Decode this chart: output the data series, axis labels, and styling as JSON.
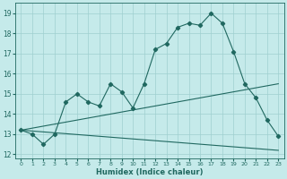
{
  "xlabel": "Humidex (Indice chaleur)",
  "xlim": [
    -0.5,
    23.5
  ],
  "ylim": [
    11.8,
    19.5
  ],
  "yticks": [
    12,
    13,
    14,
    15,
    16,
    17,
    18,
    19
  ],
  "xtick_labels": [
    "0",
    "1",
    "2",
    "3",
    "4",
    "5",
    "6",
    "7",
    "8",
    "9",
    "10",
    "11",
    "12",
    "13",
    "14",
    "15",
    "16",
    "17",
    "18",
    "19",
    "20",
    "21",
    "22",
    "23"
  ],
  "background_color": "#c5eaea",
  "grid_color": "#9fcfcf",
  "line_color": "#206860",
  "main_line_x": [
    0,
    1,
    2,
    3,
    4,
    5,
    6,
    7,
    8,
    9,
    10,
    11,
    12,
    13,
    14,
    15,
    16,
    17,
    18,
    19,
    20,
    21,
    22,
    23
  ],
  "main_line_y": [
    13.2,
    13.0,
    12.5,
    13.0,
    14.6,
    15.0,
    14.6,
    14.4,
    15.5,
    15.1,
    14.3,
    15.5,
    17.2,
    17.5,
    18.3,
    18.5,
    18.4,
    19.0,
    18.5,
    17.1,
    15.5,
    14.8,
    13.7,
    12.9
  ],
  "upper_trend_x": [
    0,
    23
  ],
  "upper_trend_y": [
    13.2,
    15.5
  ],
  "lower_trend_x": [
    0,
    23
  ],
  "lower_trend_y": [
    13.2,
    12.2
  ]
}
